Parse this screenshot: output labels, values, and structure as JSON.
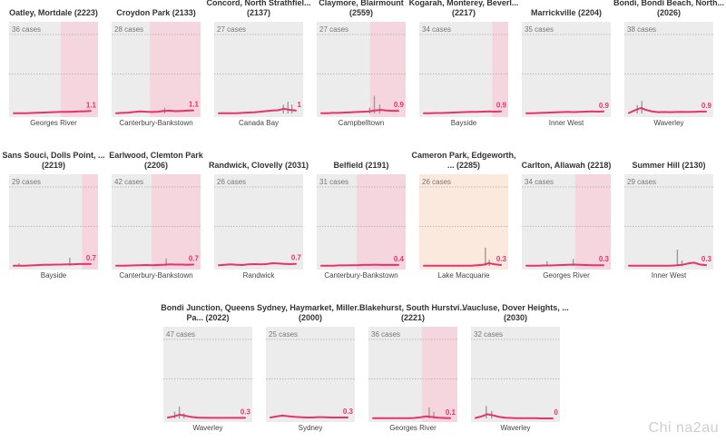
{
  "colors": {
    "panel_bg": "#ececec",
    "lockdown_shade": "#f5d6de",
    "regional_shade": "#fbe9dd",
    "line": "#e8336a",
    "bars": "#9a9a9a",
    "grid": "#aaaaaa"
  },
  "watermark": "Chi na2au",
  "chart_data": [
    {
      "type": "line",
      "title": "Oatley, Mortdale (2223)",
      "lga": "Georges River",
      "max_label": "36 cases",
      "ymax": 36,
      "latest": "1.1",
      "shade": "lockdown",
      "shade_from": 0.58,
      "values": [
        0.1,
        0.1,
        0.1,
        0.2,
        0.3,
        0.4,
        0.5,
        0.6,
        0.7,
        0.7,
        0.8,
        0.9,
        1.0,
        1.1
      ],
      "bars": []
    },
    {
      "type": "line",
      "title": "Croydon Park (2133)",
      "lga": "Canterbury-Bankstown",
      "max_label": "28 cases",
      "ymax": 28,
      "latest": "1.1",
      "shade": "lockdown",
      "shade_from": 0.43,
      "values": [
        0.1,
        0.2,
        0.3,
        0.5,
        0.7,
        0.6,
        0.5,
        0.6,
        0.9,
        1.0,
        0.8,
        0.9,
        1.0,
        1.1
      ],
      "bars": [
        [
          0.62,
          2
        ]
      ]
    },
    {
      "type": "line",
      "title": "Concord, North Strathfiel... (2137)",
      "lga": "Canada Bay",
      "max_label": "27 cases",
      "ymax": 27,
      "latest": "1",
      "shade": "none",
      "shade_from": 0,
      "values": [
        0.1,
        0.1,
        0.1,
        0.1,
        0.2,
        0.3,
        0.4,
        0.6,
        0.8,
        1.0,
        1.1,
        1.6,
        1.2,
        1.0
      ],
      "bars": [
        [
          0.83,
          3
        ],
        [
          0.89,
          4
        ],
        [
          0.94,
          3
        ]
      ]
    },
    {
      "type": "line",
      "title": "Claymore, Blairmount (2559)",
      "lga": "Campbelltown",
      "max_label": "27 cases",
      "ymax": 27,
      "latest": "0.9",
      "shade": "lockdown",
      "shade_from": 0.6,
      "values": [
        0.1,
        0.1,
        0.2,
        0.2,
        0.3,
        0.4,
        0.5,
        0.6,
        0.7,
        1.0,
        1.2,
        1.0,
        0.9,
        0.9
      ],
      "bars": [
        [
          0.62,
          2
        ],
        [
          0.68,
          6
        ],
        [
          0.75,
          3
        ]
      ]
    },
    {
      "type": "line",
      "title": "Kogarah, Monterey, Beverl... (2217)",
      "lga": "Bayside",
      "max_label": "34 cases",
      "ymax": 34,
      "latest": "0.9",
      "shade": "lockdown",
      "shade_from": 0.82,
      "values": [
        0.1,
        0.1,
        0.2,
        0.2,
        0.3,
        0.4,
        0.5,
        0.6,
        0.7,
        0.7,
        0.8,
        0.9,
        0.8,
        0.9
      ],
      "bars": []
    },
    {
      "type": "line",
      "title": "Marrickville (2204)",
      "lga": "Inner West",
      "max_label": "35 cases",
      "ymax": 35,
      "latest": "0.9",
      "shade": "none",
      "shade_from": 0,
      "values": [
        0.1,
        0.1,
        0.2,
        0.3,
        0.4,
        0.5,
        0.6,
        0.7,
        0.6,
        0.7,
        0.8,
        0.9,
        0.8,
        0.9
      ],
      "bars": []
    },
    {
      "type": "line",
      "title": "Bondi, Bondi Beach, North... (2026)",
      "lga": "Waverley",
      "max_label": "38 cases",
      "ymax": 38,
      "latest": "0.9",
      "shade": "none",
      "shade_from": 0,
      "values": [
        0.2,
        1.5,
        2.6,
        1.6,
        0.9,
        0.6,
        0.7,
        0.6,
        0.7,
        0.8,
        0.7,
        0.8,
        0.9,
        0.9
      ],
      "bars": [
        [
          0.1,
          4
        ],
        [
          0.16,
          6
        ]
      ]
    },
    {
      "type": "line",
      "title": "Sans Souci, Dolls Point, ... (2219)",
      "lga": "Bayside",
      "max_label": "29 cases",
      "ymax": 29,
      "latest": "0.7",
      "shade": "lockdown",
      "shade_from": 0.82,
      "values": [
        0.1,
        0.1,
        0.1,
        0.2,
        0.3,
        0.4,
        0.4,
        0.5,
        0.5,
        0.6,
        0.6,
        0.7,
        0.7,
        0.7
      ],
      "bars": [
        [
          0.06,
          1
        ],
        [
          0.72,
          3
        ]
      ]
    },
    {
      "type": "line",
      "title": "Earlwood, Clemton Park (2206)",
      "lga": "Canterbury-Bankstown",
      "max_label": "42 cases",
      "ymax": 42,
      "latest": "0.7",
      "shade": "lockdown",
      "shade_from": 0.45,
      "values": [
        0.1,
        0.1,
        0.2,
        0.3,
        0.4,
        0.5,
        0.4,
        0.5,
        0.6,
        0.8,
        0.7,
        0.7,
        0.6,
        0.7
      ],
      "bars": [
        [
          0.64,
          4
        ]
      ]
    },
    {
      "type": "line",
      "title": "Randwick, Clovelly (2031)",
      "lga": "Randwick",
      "max_label": "26 cases",
      "ymax": 26,
      "latest": "0.7",
      "shade": "none",
      "shade_from": 0,
      "values": [
        0.2,
        0.4,
        0.5,
        0.4,
        0.3,
        0.5,
        0.6,
        0.5,
        0.6,
        0.9,
        0.8,
        0.7,
        0.6,
        0.7
      ],
      "bars": []
    },
    {
      "type": "line",
      "title": "Belfield (2191)",
      "lga": "Canterbury-Bankstown",
      "max_label": "31 cases",
      "ymax": 31,
      "latest": "0.4",
      "shade": "lockdown",
      "shade_from": 0.45,
      "values": [
        0.1,
        0.1,
        0.1,
        0.2,
        0.2,
        0.3,
        0.3,
        0.4,
        0.4,
        0.5,
        0.4,
        0.4,
        0.4,
        0.4
      ],
      "bars": []
    },
    {
      "type": "line",
      "title": "Cameron Park, Edgeworth, ... (2285)",
      "lga": "Lake Macquarie",
      "max_label": "26 cases",
      "ymax": 26,
      "latest": "0.3",
      "shade": "regional",
      "shade_from": 0,
      "values": [
        0.1,
        0.1,
        0.1,
        0.1,
        0.1,
        0.1,
        0.1,
        0.1,
        0.1,
        0.2,
        0.4,
        0.9,
        0.5,
        0.3
      ],
      "bars": [
        [
          0.79,
          6
        ],
        [
          0.84,
          2
        ]
      ]
    },
    {
      "type": "line",
      "title": "Carlton, Allawah (2218)",
      "lga": "Georges River",
      "max_label": "34 cases",
      "ymax": 34,
      "latest": "0.3",
      "shade": "lockdown",
      "shade_from": 0.6,
      "values": [
        0.1,
        0.1,
        0.1,
        0.2,
        0.2,
        0.3,
        0.4,
        0.5,
        0.6,
        0.5,
        0.4,
        0.3,
        0.3,
        0.3
      ],
      "bars": [
        [
          0.26,
          2
        ],
        [
          0.6,
          3
        ]
      ]
    },
    {
      "type": "line",
      "title": "Summer Hill (2130)",
      "lga": "Inner West",
      "max_label": "29 cases",
      "ymax": 29,
      "latest": "0.3",
      "shade": "none",
      "shade_from": 0,
      "values": [
        0.1,
        0.1,
        0.1,
        0.1,
        0.1,
        0.1,
        0.1,
        0.1,
        0.2,
        0.4,
        0.9,
        1.2,
        0.5,
        0.3
      ],
      "bars": [
        [
          0.62,
          6
        ],
        [
          0.68,
          2
        ]
      ]
    },
    {
      "type": "line",
      "title": "Bondi Junction, Queens Pa... (2022)",
      "lga": "Waverley",
      "max_label": "47 cases",
      "ymax": 47,
      "latest": "0.3",
      "shade": "none",
      "shade_from": 0,
      "values": [
        0.5,
        1.2,
        2.2,
        1.5,
        0.8,
        0.5,
        0.4,
        0.3,
        0.3,
        0.3,
        0.3,
        0.3,
        0.3,
        0.3
      ],
      "bars": [
        [
          0.08,
          4
        ],
        [
          0.14,
          7
        ],
        [
          0.2,
          3
        ]
      ]
    },
    {
      "type": "line",
      "title": "Sydney, Haymarket, Miller... (2000)",
      "lga": "Sydney",
      "max_label": "25 cases",
      "ymax": 25,
      "latest": "0.3",
      "shade": "none",
      "shade_from": 0,
      "values": [
        0.3,
        0.6,
        0.9,
        0.7,
        0.5,
        0.4,
        0.3,
        0.3,
        0.4,
        0.4,
        0.3,
        0.3,
        0.3,
        0.3
      ],
      "bars": []
    },
    {
      "type": "line",
      "title": "Blakehurst, South Hurstvi... (2221)",
      "lga": "Georges River",
      "max_label": "36 cases",
      "ymax": 36,
      "latest": "0.1",
      "shade": "lockdown",
      "shade_from": 0.6,
      "values": [
        0.1,
        0.1,
        0.1,
        0.1,
        0.1,
        0.1,
        0.1,
        0.2,
        0.5,
        0.9,
        0.6,
        0.3,
        0.2,
        0.1
      ],
      "bars": [
        [
          0.72,
          5
        ],
        [
          0.78,
          3
        ]
      ]
    },
    {
      "type": "line",
      "title": "Vaucluse, Dover Heights, ... (2030)",
      "lga": "Waverley",
      "max_label": "32 cases",
      "ymax": 32,
      "latest": "0",
      "shade": "none",
      "shade_from": 0,
      "values": [
        0.2,
        0.8,
        1.7,
        1.2,
        0.6,
        0.3,
        0.2,
        0.1,
        0.1,
        0.1,
        0.1,
        0.0,
        0.0,
        0.0
      ],
      "bars": [
        [
          0.13,
          5
        ],
        [
          0.2,
          3
        ]
      ]
    }
  ]
}
